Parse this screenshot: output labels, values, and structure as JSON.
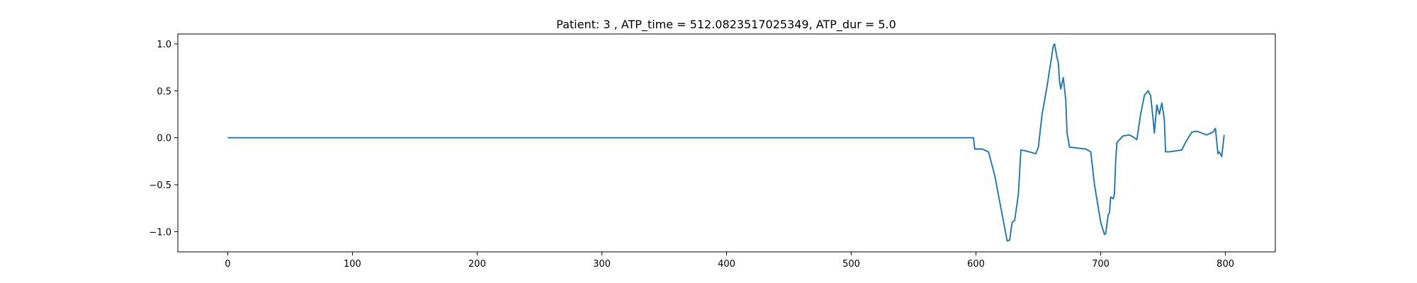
{
  "chart_data": {
    "type": "line",
    "title": "Patient: 3 , ATP_time = 512.0823517025349, ATP_dur = 5.0",
    "x": [
      0,
      598,
      599,
      605,
      610,
      615,
      620,
      625,
      627,
      629,
      631,
      634,
      636,
      640,
      648,
      650,
      653,
      657,
      662,
      663,
      665,
      666,
      667,
      668,
      670,
      672,
      673,
      675,
      688,
      692,
      695,
      700,
      703,
      704,
      706,
      707,
      708,
      710,
      711,
      712,
      713,
      718,
      723,
      727,
      729,
      732,
      735,
      738,
      740,
      742,
      743,
      745,
      747,
      749,
      751,
      752,
      755,
      765,
      768,
      773,
      777,
      785,
      790,
      792,
      794,
      795,
      797,
      799
    ],
    "values": [
      0,
      0,
      -0.12,
      -0.12,
      -0.15,
      -0.4,
      -0.75,
      -1.1,
      -1.09,
      -0.9,
      -0.88,
      -0.6,
      -0.13,
      -0.14,
      -0.17,
      -0.1,
      0.25,
      0.55,
      0.98,
      1.0,
      0.85,
      0.8,
      0.6,
      0.52,
      0.64,
      0.4,
      0.05,
      -0.1,
      -0.12,
      -0.15,
      -0.5,
      -0.9,
      -1.03,
      -1.02,
      -0.82,
      -0.8,
      -0.63,
      -0.65,
      -0.6,
      -0.25,
      -0.05,
      0.02,
      0.03,
      0.0,
      -0.02,
      0.25,
      0.45,
      0.5,
      0.45,
      0.2,
      0.05,
      0.35,
      0.25,
      0.37,
      0.2,
      -0.15,
      -0.15,
      -0.13,
      -0.05,
      0.06,
      0.07,
      0.03,
      0.06,
      0.1,
      -0.17,
      -0.15,
      -0.2,
      0.03
    ],
    "color": "#1f77b4",
    "xlim": [
      -40,
      840
    ],
    "xticks": [
      0,
      100,
      200,
      300,
      400,
      500,
      600,
      700,
      800
    ],
    "ylim": [
      -1.2155,
      1.1055
    ],
    "yticks": [
      {
        "value": -1,
        "label": "−1.0"
      },
      {
        "value": -0.5,
        "label": "−0.5"
      },
      {
        "value": 0,
        "label": "0.0"
      },
      {
        "value": 0.5,
        "label": "0.5"
      },
      {
        "value": 1,
        "label": "1.0"
      }
    ]
  }
}
